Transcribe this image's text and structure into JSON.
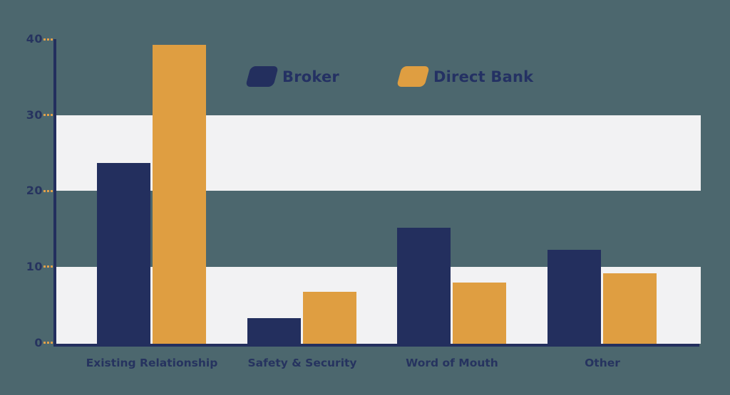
{
  "colors": {
    "background": "#4c676e",
    "band": "#f2f2f3",
    "axis": "#232f5e",
    "tick": "#e0a04b",
    "broker": "#232f5e",
    "direct_bank": "#df9e41",
    "text": "#26335f"
  },
  "y_axis": {
    "ticks": [
      "40",
      "30",
      "20",
      "10",
      "0"
    ]
  },
  "chart_data": {
    "type": "bar",
    "title": "",
    "xlabel": "",
    "ylabel": "",
    "categories": [
      "Existing Relationship",
      "Safety & Security",
      "Word of Mouth",
      "Other"
    ],
    "series": [
      {
        "name": "Broker",
        "color": "#232f5e",
        "values": [
          23.8,
          3.4,
          15.3,
          12.4
        ]
      },
      {
        "name": "Direct Bank",
        "color": "#df9e41",
        "values": [
          39.3,
          6.8,
          8.1,
          9.3
        ]
      }
    ],
    "ylim": [
      0,
      40
    ],
    "yticks": [
      0,
      10,
      20,
      30,
      40
    ],
    "grid": "alternating-horizontal-bands (0-10 and 20-30 light)",
    "legend_position": "top-center"
  }
}
